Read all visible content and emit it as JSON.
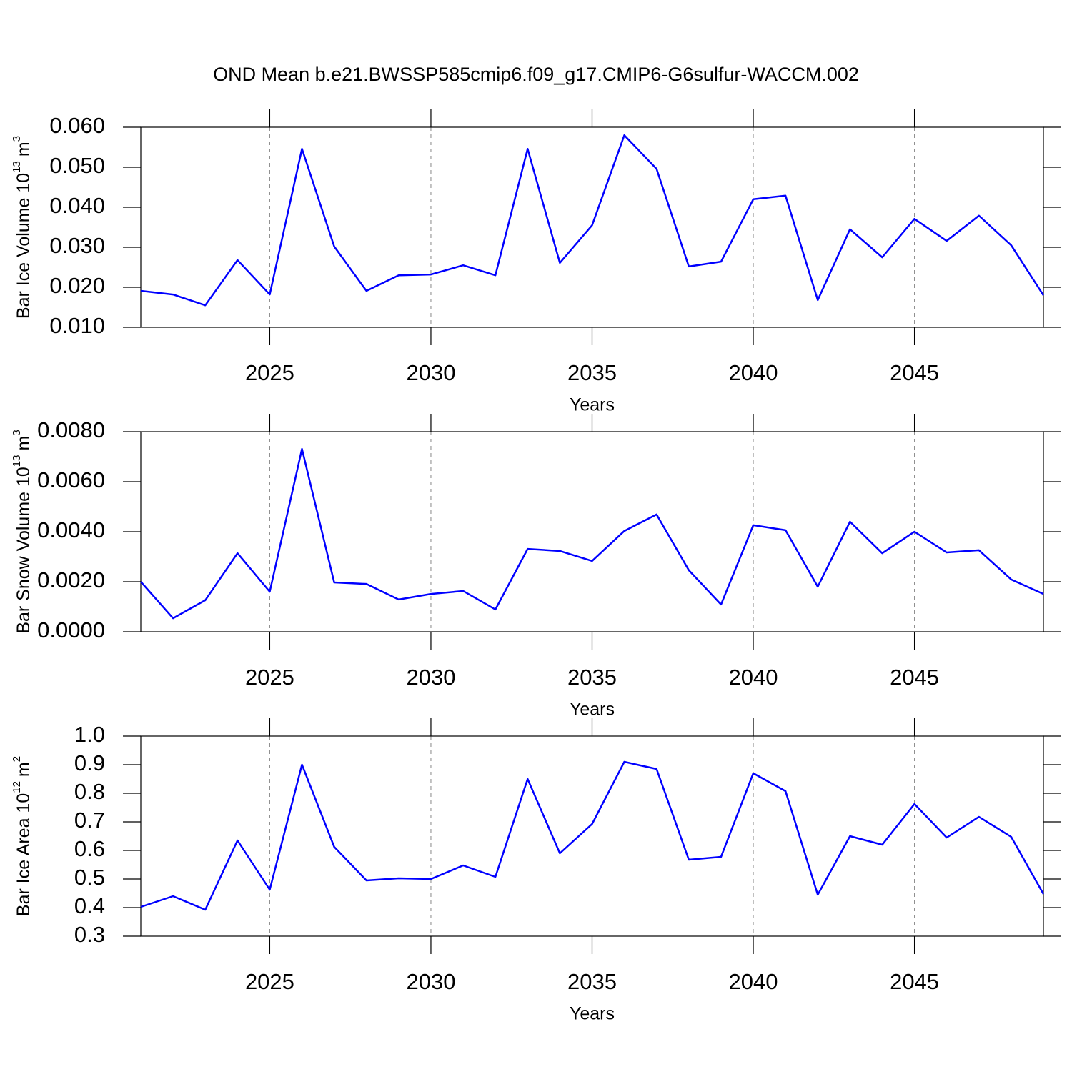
{
  "title": "OND Mean b.e21.BWSSP585cmip6.f09_g17.CMIP6-G6sulfur-WACCM.002",
  "chart_data": [
    {
      "type": "line",
      "ylabel": {
        "text": "Bar Ice Volume 10",
        "exponent": "13",
        "unit": "m",
        "unit_exponent": "3"
      },
      "xlabel": "Years",
      "x": [
        2021,
        2022,
        2023,
        2024,
        2025,
        2026,
        2027,
        2028,
        2029,
        2030,
        2031,
        2032,
        2033,
        2034,
        2035,
        2036,
        2037,
        2038,
        2039,
        2040,
        2041,
        2042,
        2043,
        2044,
        2045,
        2046,
        2047,
        2048,
        2049
      ],
      "series": [
        {
          "color": "#0000ff",
          "values": [
            0.0191,
            0.0182,
            0.0155,
            0.0268,
            0.0182,
            0.0546,
            0.0302,
            0.0191,
            0.023,
            0.0232,
            0.0255,
            0.023,
            0.0546,
            0.0261,
            0.0355,
            0.058,
            0.0496,
            0.0252,
            0.0264,
            0.042,
            0.0429,
            0.0168,
            0.0345,
            0.0275,
            0.0371,
            0.0316,
            0.0379,
            0.0305,
            0.018
          ]
        }
      ],
      "xlim": [
        2021,
        2049
      ],
      "xticks": [
        2025,
        2030,
        2035,
        2040,
        2045
      ],
      "ylim": [
        0.01,
        0.06
      ],
      "yticks": [
        {
          "value": 0.01,
          "label": "0.010"
        },
        {
          "value": 0.02,
          "label": "0.020"
        },
        {
          "value": 0.03,
          "label": "0.030"
        },
        {
          "value": 0.04,
          "label": "0.040"
        },
        {
          "value": 0.05,
          "label": "0.050"
        },
        {
          "value": 0.06,
          "label": "0.060"
        }
      ],
      "xgrid": true
    },
    {
      "type": "line",
      "ylabel": {
        "text": "Bar Snow Volume 10",
        "exponent": "13",
        "unit": "m",
        "unit_exponent": "3"
      },
      "xlabel": "Years",
      "x": [
        2021,
        2022,
        2023,
        2024,
        2025,
        2026,
        2027,
        2028,
        2029,
        2030,
        2031,
        2032,
        2033,
        2034,
        2035,
        2036,
        2037,
        2038,
        2039,
        2040,
        2041,
        2042,
        2043,
        2044,
        2045,
        2046,
        2047,
        2048,
        2049
      ],
      "series": [
        {
          "color": "#0000ff",
          "values": [
            0.002,
            0.00054,
            0.00126,
            0.00314,
            0.0016,
            0.00731,
            0.00197,
            0.00191,
            0.00129,
            0.00151,
            0.00163,
            0.00089,
            0.00331,
            0.00323,
            0.00283,
            0.00403,
            0.00469,
            0.00246,
            0.00109,
            0.00426,
            0.00406,
            0.0018,
            0.0044,
            0.00314,
            0.004,
            0.00317,
            0.00326,
            0.00209,
            0.00151
          ]
        }
      ],
      "xlim": [
        2021,
        2049
      ],
      "xticks": [
        2025,
        2030,
        2035,
        2040,
        2045
      ],
      "ylim": [
        0,
        0.008
      ],
      "yticks": [
        {
          "value": 0,
          "label": "0.0000"
        },
        {
          "value": 0.002,
          "label": "0.0020"
        },
        {
          "value": 0.004,
          "label": "0.0040"
        },
        {
          "value": 0.006,
          "label": "0.0060"
        },
        {
          "value": 0.008,
          "label": "0.0080"
        }
      ],
      "xgrid": true
    },
    {
      "type": "line",
      "ylabel": {
        "text": "Bar Ice Area 10",
        "exponent": "12",
        "unit": "m",
        "unit_exponent": "2"
      },
      "xlabel": "Years",
      "x": [
        2021,
        2022,
        2023,
        2024,
        2025,
        2026,
        2027,
        2028,
        2029,
        2030,
        2031,
        2032,
        2033,
        2034,
        2035,
        2036,
        2037,
        2038,
        2039,
        2040,
        2041,
        2042,
        2043,
        2044,
        2045,
        2046,
        2047,
        2048,
        2049
      ],
      "series": [
        {
          "color": "#0000ff",
          "values": [
            0.4025,
            0.44,
            0.3925,
            0.635,
            0.4625,
            0.9,
            0.6125,
            0.495,
            0.5025,
            0.5,
            0.5475,
            0.5075,
            0.85,
            0.59,
            0.6925,
            0.91,
            0.885,
            0.5675,
            0.5775,
            0.87,
            0.8075,
            0.445,
            0.65,
            0.62,
            0.7625,
            0.645,
            0.7175,
            0.6475,
            0.4475
          ]
        }
      ],
      "xlim": [
        2021,
        2049
      ],
      "xticks": [
        2025,
        2030,
        2035,
        2040,
        2045
      ],
      "ylim": [
        0.3,
        1.0
      ],
      "yticks": [
        0.3,
        0.4,
        0.5,
        0.6,
        0.7,
        0.8,
        0.9,
        {
          "value": 1.0,
          "label": "1.0"
        }
      ],
      "xgrid": true
    }
  ]
}
